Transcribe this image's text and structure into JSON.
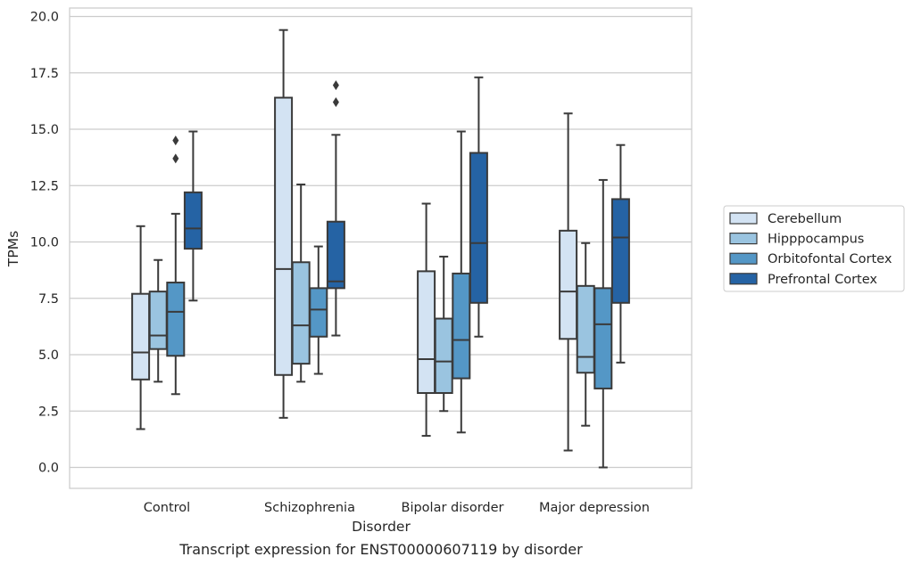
{
  "chart_data": {
    "type": "box",
    "xlabel": "Disorder",
    "ylabel": "TPMs",
    "caption": "Transcript expression for ENST00000607119 by disorder",
    "ylim": [
      -0.9,
      20.4
    ],
    "yticks": [
      "0.0",
      "2.5",
      "5.0",
      "7.5",
      "10.0",
      "12.5",
      "15.0",
      "17.5",
      "20.0"
    ],
    "grid": true,
    "legend_position": "right",
    "categories": [
      "Control",
      "Schizophrenia",
      "Bipolar disorder",
      "Major depression"
    ],
    "series": [
      {
        "name": "Cerebellum",
        "color": "#d3e3f3",
        "boxes": [
          {
            "whislo": 1.7,
            "q1": 3.9,
            "med": 5.1,
            "q3": 7.7,
            "whishi": 10.7,
            "fliers": []
          },
          {
            "whislo": 2.2,
            "q1": 4.1,
            "med": 8.8,
            "q3": 16.4,
            "whishi": 19.4,
            "fliers": []
          },
          {
            "whislo": 1.4,
            "q1": 3.3,
            "med": 4.8,
            "q3": 8.7,
            "whishi": 11.7,
            "fliers": []
          },
          {
            "whislo": 0.75,
            "q1": 5.7,
            "med": 7.8,
            "q3": 10.5,
            "whishi": 15.7,
            "fliers": []
          }
        ]
      },
      {
        "name": "Hipppocampus",
        "color": "#9ac4e0",
        "boxes": [
          {
            "whislo": 3.8,
            "q1": 5.25,
            "med": 5.85,
            "q3": 7.8,
            "whishi": 9.2,
            "fliers": []
          },
          {
            "whislo": 3.8,
            "q1": 4.6,
            "med": 6.3,
            "q3": 9.1,
            "whishi": 12.55,
            "fliers": []
          },
          {
            "whislo": 2.5,
            "q1": 3.3,
            "med": 4.7,
            "q3": 6.6,
            "whishi": 9.35,
            "fliers": []
          },
          {
            "whislo": 1.85,
            "q1": 4.2,
            "med": 4.9,
            "q3": 8.05,
            "whishi": 9.95,
            "fliers": []
          }
        ]
      },
      {
        "name": "Orbitofontal Cortex",
        "color": "#5497c6",
        "boxes": [
          {
            "whislo": 3.25,
            "q1": 4.95,
            "med": 6.9,
            "q3": 8.2,
            "whishi": 11.25,
            "fliers": [
              13.7,
              14.5
            ]
          },
          {
            "whislo": 4.15,
            "q1": 5.8,
            "med": 7.0,
            "q3": 7.95,
            "whishi": 9.8,
            "fliers": []
          },
          {
            "whislo": 1.55,
            "q1": 3.95,
            "med": 5.65,
            "q3": 8.6,
            "whishi": 14.9,
            "fliers": []
          },
          {
            "whislo": 0.0,
            "q1": 3.5,
            "med": 6.35,
            "q3": 7.95,
            "whishi": 12.75,
            "fliers": []
          }
        ]
      },
      {
        "name": "Prefrontal Cortex",
        "color": "#2563a4",
        "boxes": [
          {
            "whislo": 7.4,
            "q1": 9.7,
            "med": 10.6,
            "q3": 12.2,
            "whishi": 14.9,
            "fliers": []
          },
          {
            "whislo": 5.85,
            "q1": 7.95,
            "med": 8.25,
            "q3": 10.9,
            "whishi": 14.75,
            "fliers": [
              16.2,
              16.95
            ]
          },
          {
            "whislo": 5.8,
            "q1": 7.3,
            "med": 9.95,
            "q3": 13.95,
            "whishi": 17.3,
            "fliers": []
          },
          {
            "whislo": 4.65,
            "q1": 7.3,
            "med": 10.2,
            "q3": 11.9,
            "whishi": 14.3,
            "fliers": []
          }
        ]
      }
    ]
  }
}
